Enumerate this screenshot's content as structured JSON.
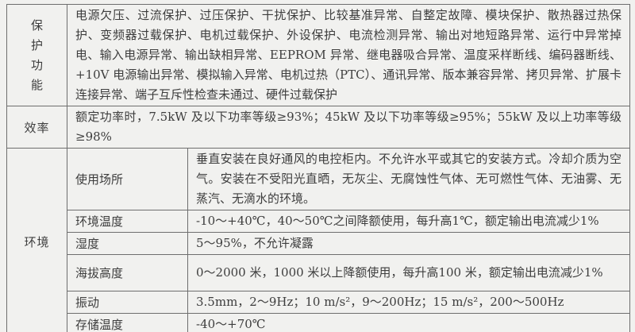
{
  "colors": {
    "background": "#f1f1ef",
    "border": "#6e6e6e",
    "outer_border": "#4a4a4a",
    "text": "#3d3d3d"
  },
  "table": {
    "rows": {
      "protection": {
        "label": "保护功能",
        "content": "电源欠压、过流保护、过压保护、干扰保护、比较基准异常、自整定故障、模块保护、散热器过热保护、变频器过载保护、电机过载保护、外设保护、电流检测异常、输出对地短路异常、运行中异常掉电、输入电源异常、输出缺相异常、EEPROM 异常、继电器吸合异常、温度采样断线、编码器断线、+10V 电源输出异常、模拟输入异常、电机过热（PTC）、通讯异常、版本兼容异常、拷贝异常、扩展卡连接异常、端子互斥性检查未通过、硬件过载保护"
      },
      "efficiency": {
        "label": "效率",
        "content": "额定功率时，7.5kW 及以下功率等级≥93%；45kW 及以下功率等级≥95%；55kW 及以上功率等级≥98%"
      },
      "environment": {
        "label": "环境",
        "items": [
          {
            "label": "使用场所",
            "content": "垂直安装在良好通风的电控柜内。不允许水平或其它的安装方式。冷却介质为空气。安装在不受阳光直晒，无灰尘、无腐蚀性气体、无可燃性气体、无油雾、无蒸汽、无滴水的环境。"
          },
          {
            "label": "环境温度",
            "content": "-10～+40℃，40～50℃之间降额使用，每升高1℃，额定输出电流减少1%"
          },
          {
            "label": "湿度",
            "content": "5～95%，不允许凝露"
          },
          {
            "label": "海拔高度",
            "content": "0～2000 米，1000 米以上降额使用，每升高100 米，额定输出电流减少1%"
          },
          {
            "label": "振动",
            "content": "3.5mm，2～9Hz；10 m/s²，9～200Hz；15 m/s²，200～500Hz"
          },
          {
            "label": "存储温度",
            "content": "-40～+70℃"
          }
        ]
      }
    }
  }
}
